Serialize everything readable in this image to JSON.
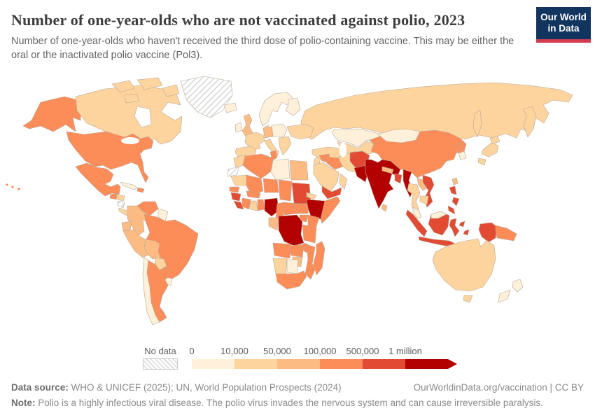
{
  "header": {
    "title": "Number of one-year-olds who are not vaccinated against polio, 2023",
    "subtitle": "Number of one-year-olds who haven't received the third dose of polio-containing vaccine. This may be either the oral or the inactivated polio vaccine (Pol3).",
    "logo": {
      "line1": "Our World",
      "line2": "in Data",
      "bg_color": "#12355f",
      "accent_color": "#d13d4e"
    }
  },
  "legend": {
    "no_data_label": "No data"
  },
  "footer": {
    "source_label": "Data source:",
    "source_text": " WHO & UNICEF (2025); UN, World Population Prospects (2024)",
    "attribution": "OurWorldinData.org/vaccination | CC BY",
    "note_label": "Note:",
    "note_text": " Polio is a highly infectious viral disease. The polio virus invades the nervous system and can cause irreversible paralysis."
  },
  "chart_data": {
    "type": "choropleth",
    "title": "Number of one-year-olds who are not vaccinated against polio",
    "year": "2023",
    "unit": "children",
    "legend_position": "bottom",
    "no_data_style": "hatched",
    "bins": [
      {
        "label": "0",
        "range": "0–10,000",
        "color": "#fef0d9"
      },
      {
        "label": "10,000",
        "range": "10,000–50,000",
        "color": "#fdd49e"
      },
      {
        "label": "50,000",
        "range": "50,000–100,000",
        "color": "#fdbb84"
      },
      {
        "label": "100,000",
        "range": "100,000–500,000",
        "color": "#fc8d59"
      },
      {
        "label": "500,000",
        "range": "500,000–1 million",
        "color": "#e34a33"
      },
      {
        "label": "1 million",
        "range": "1 million+",
        "color": "#b30000"
      }
    ],
    "regions": {
      "alaska": 3,
      "hawaii": 3,
      "usa": 3,
      "canada": 1,
      "arctic-a": 1,
      "arctic-b": 1,
      "arctic-c": 1,
      "arctic-d": 1,
      "greenland": "nodata",
      "iceland": 0,
      "mexico": 3,
      "guatemala": 3,
      "honduras": 1,
      "nicaragua": "nodata",
      "costa-rica-panama": 1,
      "cuba": 0,
      "hispaniola": 3,
      "venezuela": 3,
      "colombia": 2,
      "guyanas": 0,
      "ecuador": 2,
      "peru": 2,
      "brazil": 3,
      "bolivia": 2,
      "paraguay": 1,
      "uruguay": 0,
      "argentina": 3,
      "chile": 0,
      "ireland": 0,
      "uk": 2,
      "norway-sweden": 0,
      "finland": 0,
      "denmark": 1,
      "france": 1,
      "iberia": 1,
      "germany": 2,
      "central-europe": 0,
      "italy": 1,
      "balkans": 1,
      "ukraine": 1,
      "russia": 1,
      "kazakhstan": 0,
      "central-asia": 1,
      "turkey": 1,
      "syria": 3,
      "iraq": 3,
      "jordan": 1,
      "iran": 1,
      "saudi-arabia": 1,
      "yemen": 4,
      "oman": 1,
      "afghanistan": 4,
      "pakistan": 5,
      "india": 5,
      "nepal": 2,
      "bangladesh": 4,
      "sri-lanka": 2,
      "myanmar": 5,
      "thailand": 1,
      "laos": 2,
      "vietnam": 4,
      "cambodia": 1,
      "malaysia": 0,
      "east-malaysia": 0,
      "china": 3,
      "mongolia": 0,
      "north-korea": 3,
      "south-korea": 0,
      "japan": 1,
      "taiwan": 2,
      "philippines": 4,
      "indonesia": 4,
      "timor-leste": 1,
      "papua-new-guinea": 3,
      "australia": 1,
      "new-zealand": 0,
      "morocco": 1,
      "western-sahara": "nodata",
      "algeria": 3,
      "tunisia": 3,
      "libya": 0,
      "egypt": 2,
      "mauritania": 1,
      "mali": 3,
      "niger": 3,
      "chad": 3,
      "sudan": 4,
      "eritrea": 1,
      "senegal": 3,
      "guinea": 4,
      "sierra-leone-liberia": 4,
      "cote-divoire": 3,
      "ghana": 1,
      "togo-benin": 3,
      "burkina-faso": 3,
      "nigeria": 5,
      "cameroon": 3,
      "central-african-republic": 3,
      "south-sudan": 3,
      "ethiopia": 5,
      "somalia": 3,
      "uganda": 3,
      "kenya": 3,
      "gabon-congo": 2,
      "drc": 5,
      "tanzania": 3,
      "angola": 3,
      "zambia": 3,
      "malawi": 3,
      "mozambique": 3,
      "zimbabwe": 2,
      "namibia": 1,
      "botswana": 0,
      "south-africa": 3,
      "madagascar": 3
    }
  }
}
